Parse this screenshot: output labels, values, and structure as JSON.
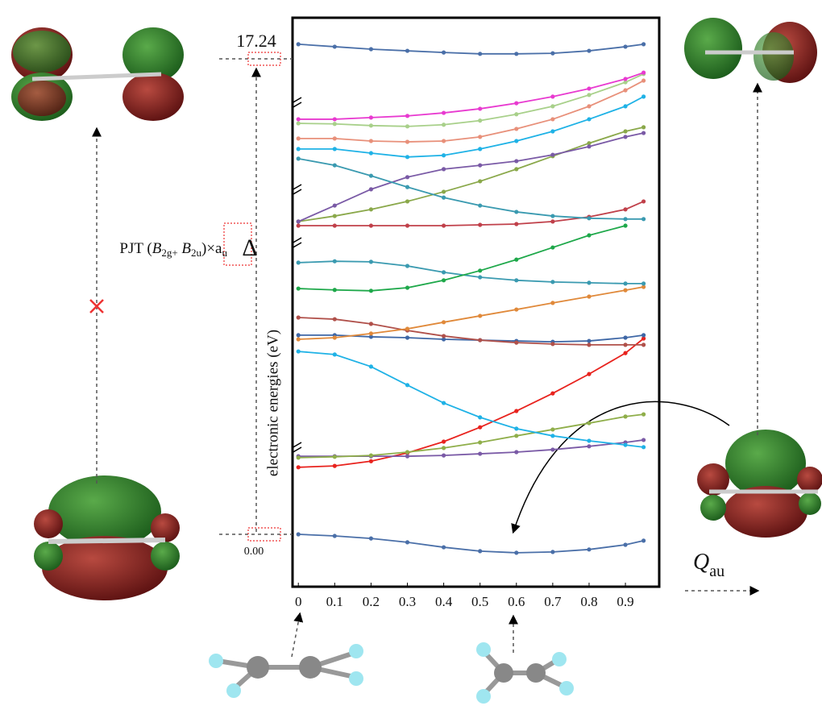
{
  "chart_data": {
    "type": "line",
    "y_label": "electronic energies (eV)",
    "x_label": {
      "text": "Q",
      "sub": "au"
    },
    "pjt_label": {
      "a": "PJT (",
      "b": "B",
      "c": "2g+",
      "d": " B",
      "e": "2u",
      "f": ")×a",
      "g": "u"
    },
    "delta": "Δ",
    "levels": [
      17.24,
      {
        "value": 0,
        "label": "0.00"
      }
    ],
    "x": [
      0,
      0.1,
      0.2,
      0.3,
      0.4,
      0.5,
      0.6,
      0.7,
      0.8,
      0.9,
      0.95
    ],
    "xlim": [
      -0.016,
      0.993
    ],
    "ylim": [
      -1.9,
      18.73
    ],
    "xticks": [
      0,
      0.1,
      0.2,
      0.3,
      0.4,
      0.5,
      0.6,
      0.7,
      0.8,
      0.9
    ],
    "series": [
      {
        "color": "#4a6fa8",
        "values": [
          0,
          -0.06,
          -0.15,
          -0.29,
          -0.47,
          -0.61,
          -0.67,
          -0.64,
          -0.55,
          -0.38,
          -0.23
        ]
      },
      {
        "color": "#4a6fa8",
        "values": [
          17.77,
          17.68,
          17.59,
          17.53,
          17.47,
          17.42,
          17.42,
          17.44,
          17.53,
          17.68,
          17.77
        ]
      },
      {
        "color": "#e8231e",
        "values": [
          2.43,
          2.48,
          2.65,
          2.95,
          3.36,
          3.88,
          4.47,
          5.11,
          5.81,
          6.57,
          7.1
        ]
      },
      {
        "color": "#7a5aa6",
        "values": [
          2.83,
          2.83,
          2.83,
          2.83,
          2.86,
          2.92,
          2.98,
          3.07,
          3.19,
          3.33,
          3.42
        ]
      },
      {
        "color": "#8fae4a",
        "values": [
          2.78,
          2.81,
          2.86,
          2.98,
          3.13,
          3.33,
          3.57,
          3.8,
          4.03,
          4.27,
          4.35
        ]
      },
      {
        "color": "#1fb2e6",
        "values": [
          6.63,
          6.52,
          6.08,
          5.41,
          4.76,
          4.24,
          3.83,
          3.57,
          3.39,
          3.24,
          3.16
        ]
      },
      {
        "color": "#3e67a6",
        "values": [
          7.22,
          7.22,
          7.16,
          7.13,
          7.07,
          7.04,
          7.01,
          6.98,
          7.01,
          7.13,
          7.22
        ]
      },
      {
        "color": "#b0504a",
        "values": [
          7.86,
          7.8,
          7.63,
          7.39,
          7.19,
          7.04,
          6.95,
          6.9,
          6.87,
          6.87,
          6.87
        ]
      },
      {
        "color": "#e0893a",
        "values": [
          7.07,
          7.13,
          7.28,
          7.45,
          7.69,
          7.92,
          8.15,
          8.39,
          8.62,
          8.85,
          8.97
        ]
      },
      {
        "color": "#3a9ab0",
        "values": [
          9.85,
          9.9,
          9.88,
          9.73,
          9.5,
          9.32,
          9.21,
          9.15,
          9.12,
          9.09,
          9.09
        ]
      },
      {
        "color": "#1ea84a",
        "values": [
          8.91,
          8.86,
          8.83,
          8.94,
          9.21,
          9.56,
          9.96,
          10.4,
          10.84,
          11.19,
          null
        ]
      },
      {
        "color": "#c0404a",
        "values": [
          11.19,
          11.19,
          11.19,
          11.19,
          11.19,
          11.22,
          11.25,
          11.34,
          11.51,
          11.78,
          12.07
        ]
      },
      {
        "color": "#8aa84a",
        "values": [
          11.34,
          11.54,
          11.78,
          12.07,
          12.42,
          12.8,
          13.24,
          13.71,
          14.18,
          14.61,
          14.76
        ]
      },
      {
        "color": "#7a5aa6",
        "values": [
          11.34,
          11.92,
          12.51,
          12.95,
          13.24,
          13.38,
          13.53,
          13.76,
          14.06,
          14.41,
          14.55
        ]
      },
      {
        "color": "#3a9ab0",
        "values": [
          13.62,
          13.38,
          13.0,
          12.59,
          12.21,
          11.92,
          11.69,
          11.54,
          11.46,
          11.43,
          11.43
        ]
      },
      {
        "color": "#1fb2e6",
        "values": [
          13.97,
          13.97,
          13.82,
          13.68,
          13.74,
          13.97,
          14.26,
          14.61,
          15.05,
          15.52,
          15.87
        ]
      },
      {
        "color": "#e8907a",
        "values": [
          14.35,
          14.35,
          14.26,
          14.23,
          14.26,
          14.41,
          14.7,
          15.05,
          15.52,
          16.1,
          16.45
        ]
      },
      {
        "color": "#a8d08a",
        "values": [
          14.9,
          14.88,
          14.82,
          14.79,
          14.85,
          15.0,
          15.23,
          15.52,
          15.93,
          16.39,
          16.69
        ]
      },
      {
        "color": "#e83ad0",
        "values": [
          15.05,
          15.05,
          15.11,
          15.17,
          15.28,
          15.43,
          15.63,
          15.87,
          16.16,
          16.51,
          16.74
        ]
      }
    ]
  }
}
